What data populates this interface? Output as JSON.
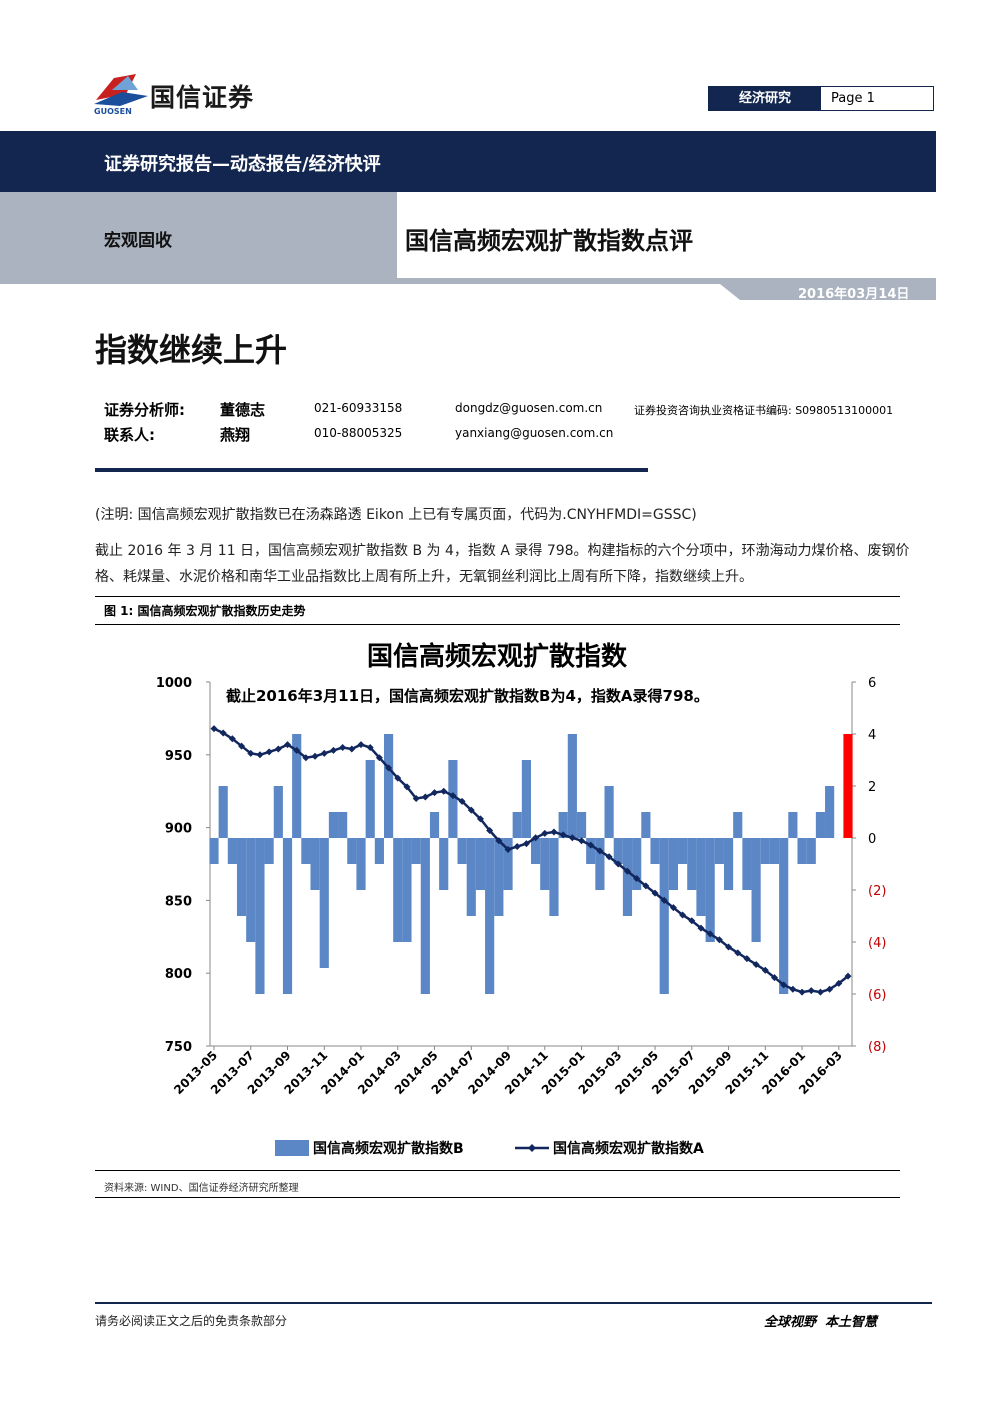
{
  "header": {
    "logo_sub": "GUOSEN",
    "brand": "国信证券",
    "section": "经济研究",
    "page": "Page 1"
  },
  "banner": {
    "report_type": "证券研究报告—动态报告/经济快评",
    "category": "宏观固收",
    "title": "国信高频宏观扩散指数点评",
    "date": "2016年03月14日"
  },
  "headline": "指数继续上升",
  "analysts": [
    {
      "role": "证券分析师:",
      "name": "董德志",
      "phone": "021-60933158",
      "email": "dongdz@guosen.com.cn",
      "cert": "证券投资咨询执业资格证书编码: S0980513100001"
    },
    {
      "role": "联系人:",
      "name": "燕翔",
      "phone": "010-88005325",
      "email": "yanxiang@guosen.com.cn"
    }
  ],
  "body": {
    "note": "(注明: 国信高频宏观扩散指数已在汤森路透 Eikon 上已有专属页面，代码为.CNYHFMDI=GSSC)",
    "paragraph": "截止 2016 年 3 月 11 日，国信高频宏观扩散指数 B 为 4，指数 A 录得 798。构建指标的六个分项中，环渤海动力煤价格、废钢价格、耗煤量、水泥价格和南华工业品指数比上周有所上升，无氧铜丝利润比上周有所下降，指数继续上升。",
    "figure_label": "图 1: 国信高频宏观扩散指数历史走势",
    "source": "资料来源: WIND、国信证券经济研究所整理"
  },
  "footer": {
    "disclaimer": "请务必阅读正文之后的免责条款部分",
    "slogan": "全球视野  本土智慧"
  },
  "chart_data": {
    "type": "bar-line",
    "title": "国信高频宏观扩散指数",
    "annotation": "截止2016年3月11日，国信高频宏观扩散指数B为4，指数A录得798。",
    "categories": [
      "2013-05",
      null,
      null,
      null,
      "2013-07",
      null,
      null,
      null,
      "2013-09",
      null,
      null,
      null,
      "2013-11",
      null,
      null,
      null,
      "2014-01",
      null,
      null,
      null,
      "2014-03",
      null,
      null,
      null,
      "2014-05",
      null,
      null,
      null,
      "2014-07",
      null,
      null,
      null,
      "2014-09",
      null,
      null,
      null,
      "2014-11",
      null,
      null,
      null,
      "2015-01",
      null,
      null,
      null,
      "2015-03",
      null,
      null,
      null,
      "2015-05",
      null,
      null,
      null,
      "2015-07",
      null,
      null,
      null,
      "2015-09",
      null,
      null,
      null,
      "2015-11",
      null,
      null,
      null,
      "2016-01",
      null,
      null,
      null,
      "2016-03",
      null
    ],
    "series": [
      {
        "name": "国信高频宏观扩散指数B",
        "type": "bar",
        "axis": "y2",
        "color": "#5b87c6",
        "last_color": "#ff0000",
        "values": [
          -1,
          2,
          -1,
          -3,
          -4,
          -6,
          -1,
          2,
          -6,
          4,
          -1,
          -2,
          -5,
          1,
          1,
          -1,
          -2,
          3,
          -1,
          4,
          -4,
          -4,
          -1,
          -6,
          1,
          -2,
          3,
          -1,
          -3,
          -2,
          -6,
          -3,
          -2,
          1,
          3,
          -1,
          -2,
          -3,
          1,
          4,
          1,
          -1,
          -2,
          2,
          -1,
          -3,
          -2,
          1,
          -1,
          -6,
          -2,
          -1,
          -2,
          -3,
          -4,
          -1,
          -2,
          1,
          -2,
          -4,
          -1,
          -1,
          -6,
          1,
          -1,
          -1,
          1,
          2,
          0,
          4
        ]
      },
      {
        "name": "国信高频宏观扩散指数A",
        "type": "line",
        "color": "#12275e",
        "values": [
          968,
          965,
          961,
          956,
          951,
          950,
          952,
          954,
          957,
          953,
          948,
          949,
          951,
          953,
          955,
          954,
          957,
          955,
          948,
          941,
          934,
          928,
          920,
          921,
          924,
          925,
          922,
          918,
          912,
          906,
          898,
          891,
          885,
          887,
          889,
          893,
          896,
          897,
          895,
          893,
          891,
          888,
          884,
          880,
          875,
          870,
          865,
          860,
          855,
          850,
          845,
          840,
          836,
          831,
          827,
          823,
          818,
          814,
          810,
          806,
          802,
          797,
          792,
          789,
          787,
          788,
          787,
          789,
          793,
          798
        ]
      }
    ],
    "ylim": [
      750,
      1000
    ],
    "yticks": [
      750,
      800,
      850,
      900,
      950,
      1000
    ],
    "y2lim": [
      -8,
      6
    ],
    "y2ticks": [
      {
        "value": -8,
        "label": "(8)"
      },
      {
        "value": -6,
        "label": "(6)"
      },
      {
        "value": -4,
        "label": "(4)"
      },
      {
        "value": -2,
        "label": "(2)"
      },
      0,
      2,
      4,
      6
    ],
    "y2_negative_color": "#c00000",
    "grid": false,
    "legend": "bottom"
  }
}
